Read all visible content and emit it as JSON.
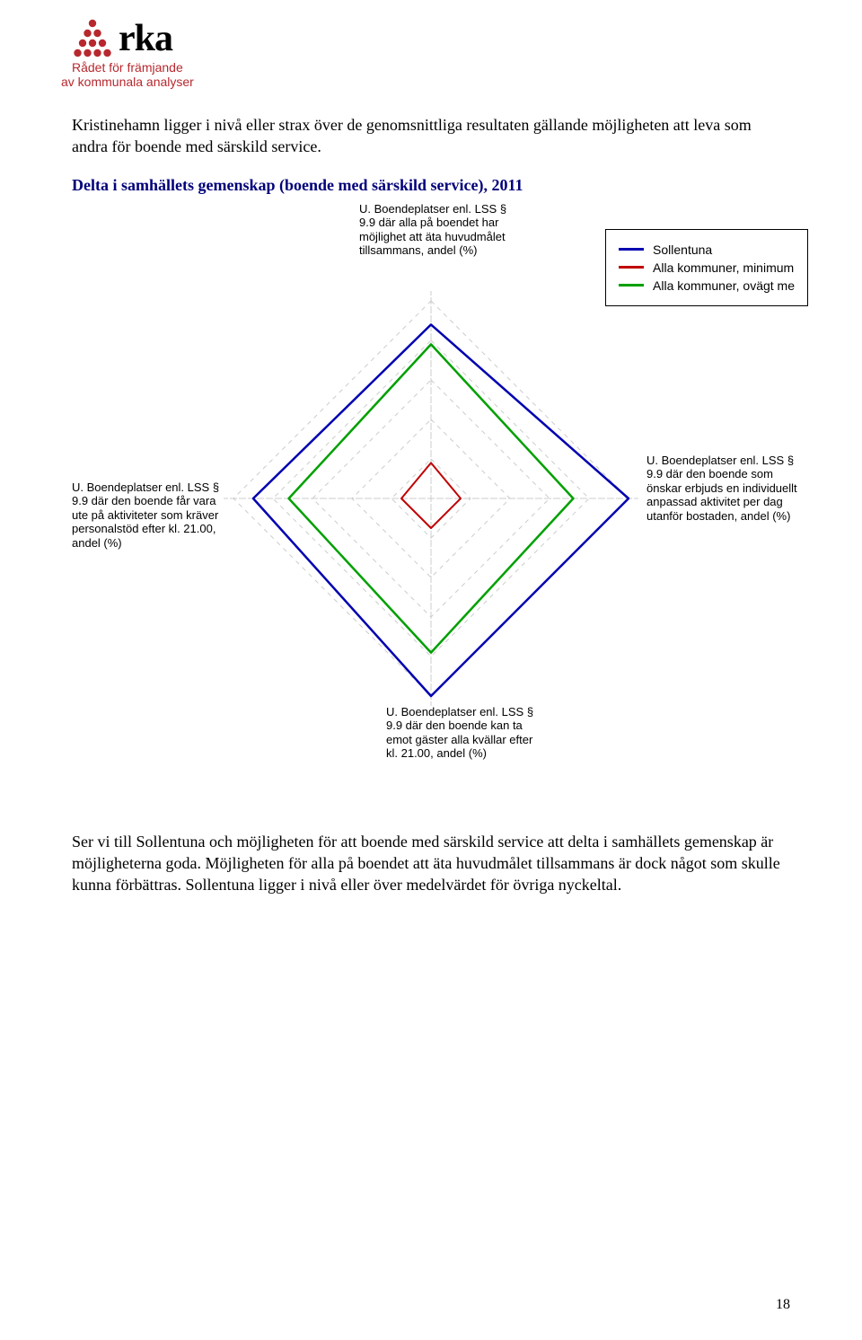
{
  "logo": {
    "word": "rka",
    "dot_color": "#b7282e",
    "sub1": "Rådet för främjande",
    "sub2": "av kommunala analyser"
  },
  "para1": "Kristinehamn ligger i nivå eller strax över de genomsnittliga resultaten gällande möjligheten att leva som andra för boende med särskild service.",
  "heading": "Delta i samhällets gemenskap (boende med särskild service), 2011",
  "chart": {
    "type": "radar",
    "axes_count": 4,
    "levels": 5,
    "grid_color": "#cccccc",
    "axis_color": "#cccccc",
    "series": [
      {
        "name": "Sollentuna",
        "color": "#0000b0",
        "width": 2.5,
        "values": [
          0.88,
          1.0,
          1.0,
          0.9
        ]
      },
      {
        "name": "Alla kommuner, minimum",
        "color": "#c00000",
        "width": 2.0,
        "values": [
          0.18,
          0.15,
          0.15,
          0.15
        ]
      },
      {
        "name": "Alla kommuner, ovägt me",
        "color": "#00a000",
        "width": 2.5,
        "values": [
          0.78,
          0.72,
          0.78,
          0.72
        ]
      }
    ],
    "axis_labels": {
      "top": "U. Boendeplatser enl. LSS § 9.9 där alla på boendet har möjlighet att äta huvudmålet tillsammans, andel (%)",
      "right": "U. Boendeplatser enl. LSS § 9.9 där den boende som önskar erbjuds en individuellt anpassad aktivitet per dag utanför bostaden, andel (%)",
      "bottom": "U. Boendeplatser enl. LSS § 9.9 där den boende kan ta emot gäster alla kvällar efter kl. 21.00, andel (%)",
      "left": "U. Boendeplatser enl. LSS § 9.9 där den boende får vara ute på aktiviteter som kräver personalstöd efter kl. 21.00, andel (%)"
    },
    "legend_border": "#000000",
    "legend_fontsize": 14
  },
  "para2": "Ser vi till Sollentuna och möjligheten för att boende med särskild service att delta i samhällets gemenskap är möjligheterna goda. Möjligheten för alla på boendet att äta huvudmålet tillsammans är dock något som skulle kunna förbättras. Sollentuna ligger i nivå eller över medelvärdet för övriga nyckeltal.",
  "page_number": "18"
}
